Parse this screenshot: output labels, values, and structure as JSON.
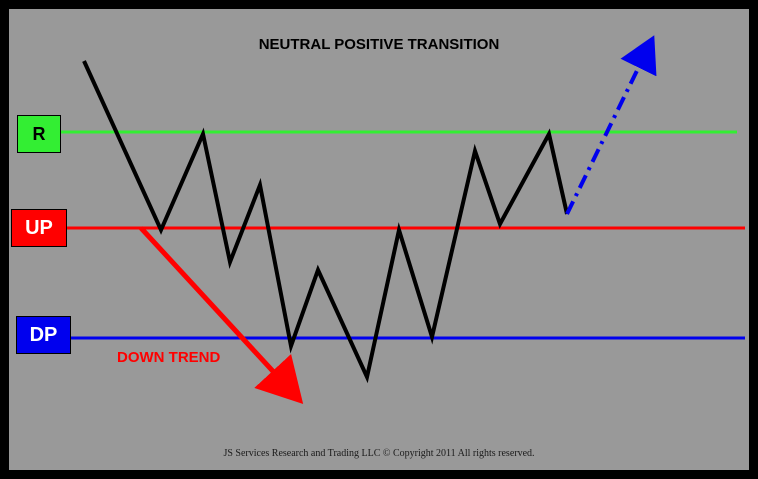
{
  "title": "NEUTRAL POSITIVE TRANSITION",
  "labels": {
    "r": "R",
    "up": "UP",
    "dp": "DP"
  },
  "trend_label": "DOWN TREND",
  "footer": "JS Services Research and Trading LLC © Copyright 2011 All rights reserved.",
  "colors": {
    "frame": "#000000",
    "background": "#999999",
    "r_line": "#33ee33",
    "up_line": "#ff0000",
    "dp_line": "#0000ee",
    "price_line": "#000000",
    "down_trend": "#ff0000",
    "projection": "#0000ee",
    "r_box": "#33ee33",
    "up_box": "#ff0000",
    "dp_box": "#0000ee",
    "up_text": "#ffffff",
    "dp_text": "#ffffff",
    "r_text": "#000000"
  }
}
